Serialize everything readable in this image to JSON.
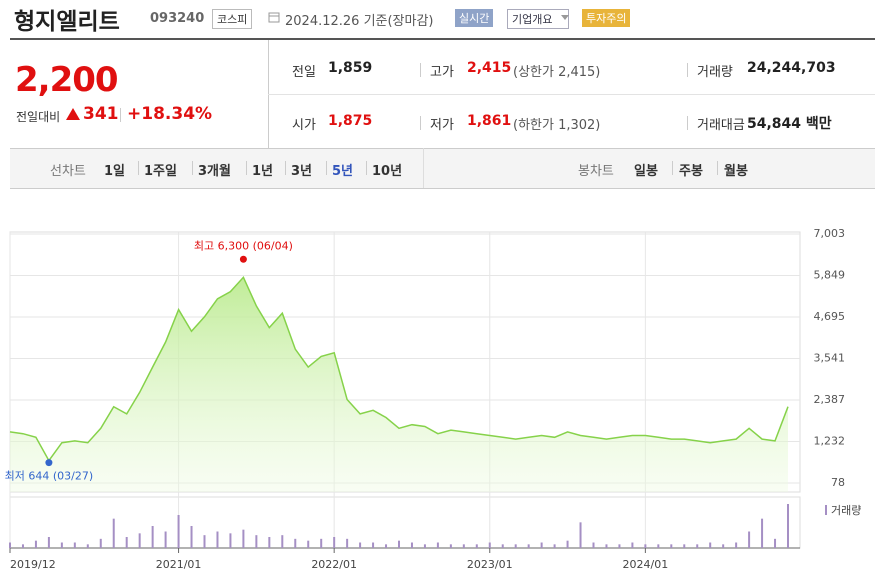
{
  "header": {
    "name": "형지엘리트",
    "code": "093240",
    "market": "코스피",
    "date": "2024.12.26 기준(장마감)",
    "buttons": [
      "실시간",
      "기업개요",
      "투자주의"
    ]
  },
  "quote": {
    "price": "2,200",
    "change_label": "전일대비",
    "change": "341",
    "change_pct": "+18.34%"
  },
  "stats": [
    [
      {
        "label": "전일",
        "value": "1,859"
      },
      {
        "label": "고가",
        "value": "2,415",
        "note": "(상한가 2,415)"
      },
      {
        "label": "거래량",
        "value": "24,244,703"
      }
    ],
    [
      {
        "label": "시가",
        "value": "1,875"
      },
      {
        "label": "저가",
        "value": "1,861",
        "note": "(하한가 1,302)"
      },
      {
        "label": "거래대금",
        "value": "54,844 백만"
      }
    ]
  ],
  "tabs": {
    "line_label": "선차트",
    "line_periods": [
      "1일",
      "1주일",
      "3개월",
      "1년",
      "3년",
      "5년",
      "10년"
    ],
    "selected": "5년",
    "candle_label": "봉차트",
    "candle_periods": [
      "일봉",
      "주봉",
      "월봉"
    ]
  },
  "chart_data": {
    "type": "line",
    "x": [
      "2019/12",
      "2020/01",
      "2020/02",
      "2020/03",
      "2020/04",
      "2020/05",
      "2020/06",
      "2020/07",
      "2020/08",
      "2020/09",
      "2020/10",
      "2020/11",
      "2020/12",
      "2021/01",
      "2021/02",
      "2021/03",
      "2021/04",
      "2021/05",
      "2021/06",
      "2021/07",
      "2021/08",
      "2021/09",
      "2021/10",
      "2021/11",
      "2021/12",
      "2022/01",
      "2022/02",
      "2022/03",
      "2022/04",
      "2022/05",
      "2022/06",
      "2022/07",
      "2022/08",
      "2022/09",
      "2022/10",
      "2022/11",
      "2022/12",
      "2023/01",
      "2023/02",
      "2023/03",
      "2023/04",
      "2023/05",
      "2023/06",
      "2023/07",
      "2023/08",
      "2023/09",
      "2023/10",
      "2023/11",
      "2023/12",
      "2024/01",
      "2024/02",
      "2024/03",
      "2024/04",
      "2024/05",
      "2024/06",
      "2024/07",
      "2024/08",
      "2024/09",
      "2024/10",
      "2024/11",
      "2024/12"
    ],
    "series": [
      {
        "name": "종가",
        "color": "#86d24a",
        "values": [
          1500,
          1450,
          1350,
          700,
          1200,
          1250,
          1200,
          1600,
          2200,
          2000,
          2600,
          3300,
          4000,
          4900,
          4300,
          4700,
          5200,
          5400,
          5800,
          5000,
          4400,
          4800,
          3800,
          3300,
          3600,
          3700,
          2400,
          2000,
          2100,
          1900,
          1600,
          1700,
          1650,
          1450,
          1550,
          1500,
          1450,
          1400,
          1350,
          1300,
          1350,
          1400,
          1350,
          1500,
          1400,
          1350,
          1300,
          1350,
          1400,
          1400,
          1350,
          1300,
          1300,
          1250,
          1200,
          1250,
          1300,
          1600,
          1300,
          1250,
          2200
        ]
      }
    ],
    "volume": {
      "name": "거래량",
      "color": "#a58fc4",
      "values": [
        3,
        2,
        4,
        6,
        3,
        3,
        2,
        5,
        16,
        6,
        8,
        12,
        9,
        18,
        12,
        7,
        9,
        8,
        10,
        7,
        6,
        7,
        5,
        4,
        5,
        6,
        5,
        3,
        3,
        2,
        4,
        3,
        2,
        3,
        2,
        2,
        2,
        3,
        2,
        2,
        2,
        3,
        2,
        4,
        14,
        3,
        2,
        2,
        3,
        2,
        2,
        2,
        2,
        2,
        3,
        2,
        3,
        9,
        16,
        5,
        24
      ]
    },
    "ylim": [
      78,
      7003
    ],
    "yticks": [
      {
        "value": 7003,
        "label": "7,003"
      },
      {
        "value": 5849,
        "label": "5,849"
      },
      {
        "value": 4695,
        "label": "4,695"
      },
      {
        "value": 3541,
        "label": "3,541"
      },
      {
        "value": 2387,
        "label": "2,387"
      },
      {
        "value": 1232,
        "label": "1,232"
      },
      78
    ],
    "xticks": [
      "2019/12",
      "2021/01",
      "2022/01",
      "2023/01",
      "2024/01"
    ],
    "grid": true,
    "annotations": [
      {
        "text": "최고 6,300 (06/04)",
        "x": "2021/06",
        "y": 6300,
        "color": "#e01010"
      },
      {
        "text": "최저 644 (03/27)",
        "x": "2020/03",
        "y": 644,
        "color": "#3366cc"
      }
    ]
  }
}
